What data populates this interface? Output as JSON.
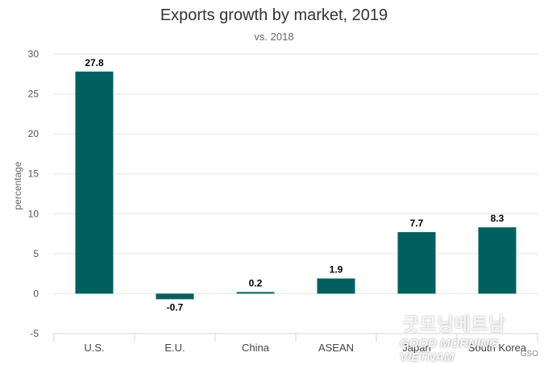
{
  "chart_data": {
    "type": "bar",
    "title": "Exports growth by market, 2019",
    "subtitle": "vs. 2018",
    "ylabel": "percentage",
    "xlabel": "",
    "categories": [
      "U.S.",
      "E.U.",
      "China",
      "ASEAN",
      "Japan",
      "South Korea"
    ],
    "values": [
      27.8,
      -0.7,
      0.2,
      1.9,
      7.7,
      8.3
    ],
    "data_labels": [
      "27.8",
      "-0.7",
      "0.2",
      "1.9",
      "7.7",
      "8.3"
    ],
    "ylim": [
      -5,
      30
    ],
    "yticks": [
      -5,
      0,
      5,
      10,
      15,
      20,
      25,
      30
    ],
    "grid": true,
    "bar_color": "#00605f",
    "legend": "none"
  },
  "watermark": {
    "line1": "굿모닝베트남",
    "line2": "GOOD MORNING VIETNAM"
  },
  "source": "GSO"
}
